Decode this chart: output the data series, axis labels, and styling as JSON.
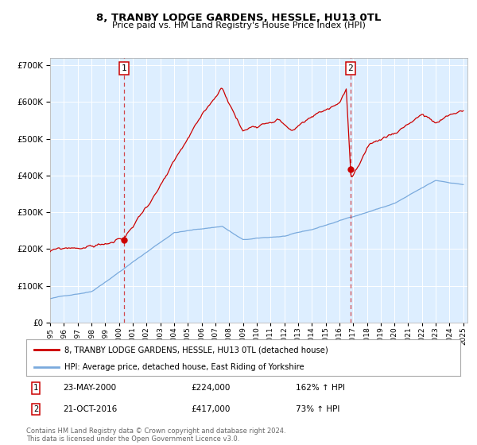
{
  "title": "8, TRANBY LODGE GARDENS, HESSLE, HU13 0TL",
  "subtitle": "Price paid vs. HM Land Registry's House Price Index (HPI)",
  "legend_line1": "8, TRANBY LODGE GARDENS, HESSLE, HU13 0TL (detached house)",
  "legend_line2": "HPI: Average price, detached house, East Riding of Yorkshire",
  "footnote1": "Contains HM Land Registry data © Crown copyright and database right 2024.",
  "footnote2": "This data is licensed under the Open Government Licence v3.0.",
  "sale1_date": "23-MAY-2000",
  "sale1_price": "£224,000",
  "sale1_hpi": "162% ↑ HPI",
  "sale2_date": "21-OCT-2016",
  "sale2_price": "£417,000",
  "sale2_hpi": "73% ↑ HPI",
  "red_color": "#cc0000",
  "blue_color": "#7aaadd",
  "bg_color": "#ddeeff",
  "ylim": [
    0,
    720000
  ],
  "yticks": [
    0,
    100000,
    200000,
    300000,
    400000,
    500000,
    600000,
    700000
  ],
  "sale1_x": 2000.38,
  "sale1_y": 224000,
  "sale2_x": 2016.8,
  "sale2_y": 417000,
  "xmin": 1995,
  "xmax": 2025.3
}
